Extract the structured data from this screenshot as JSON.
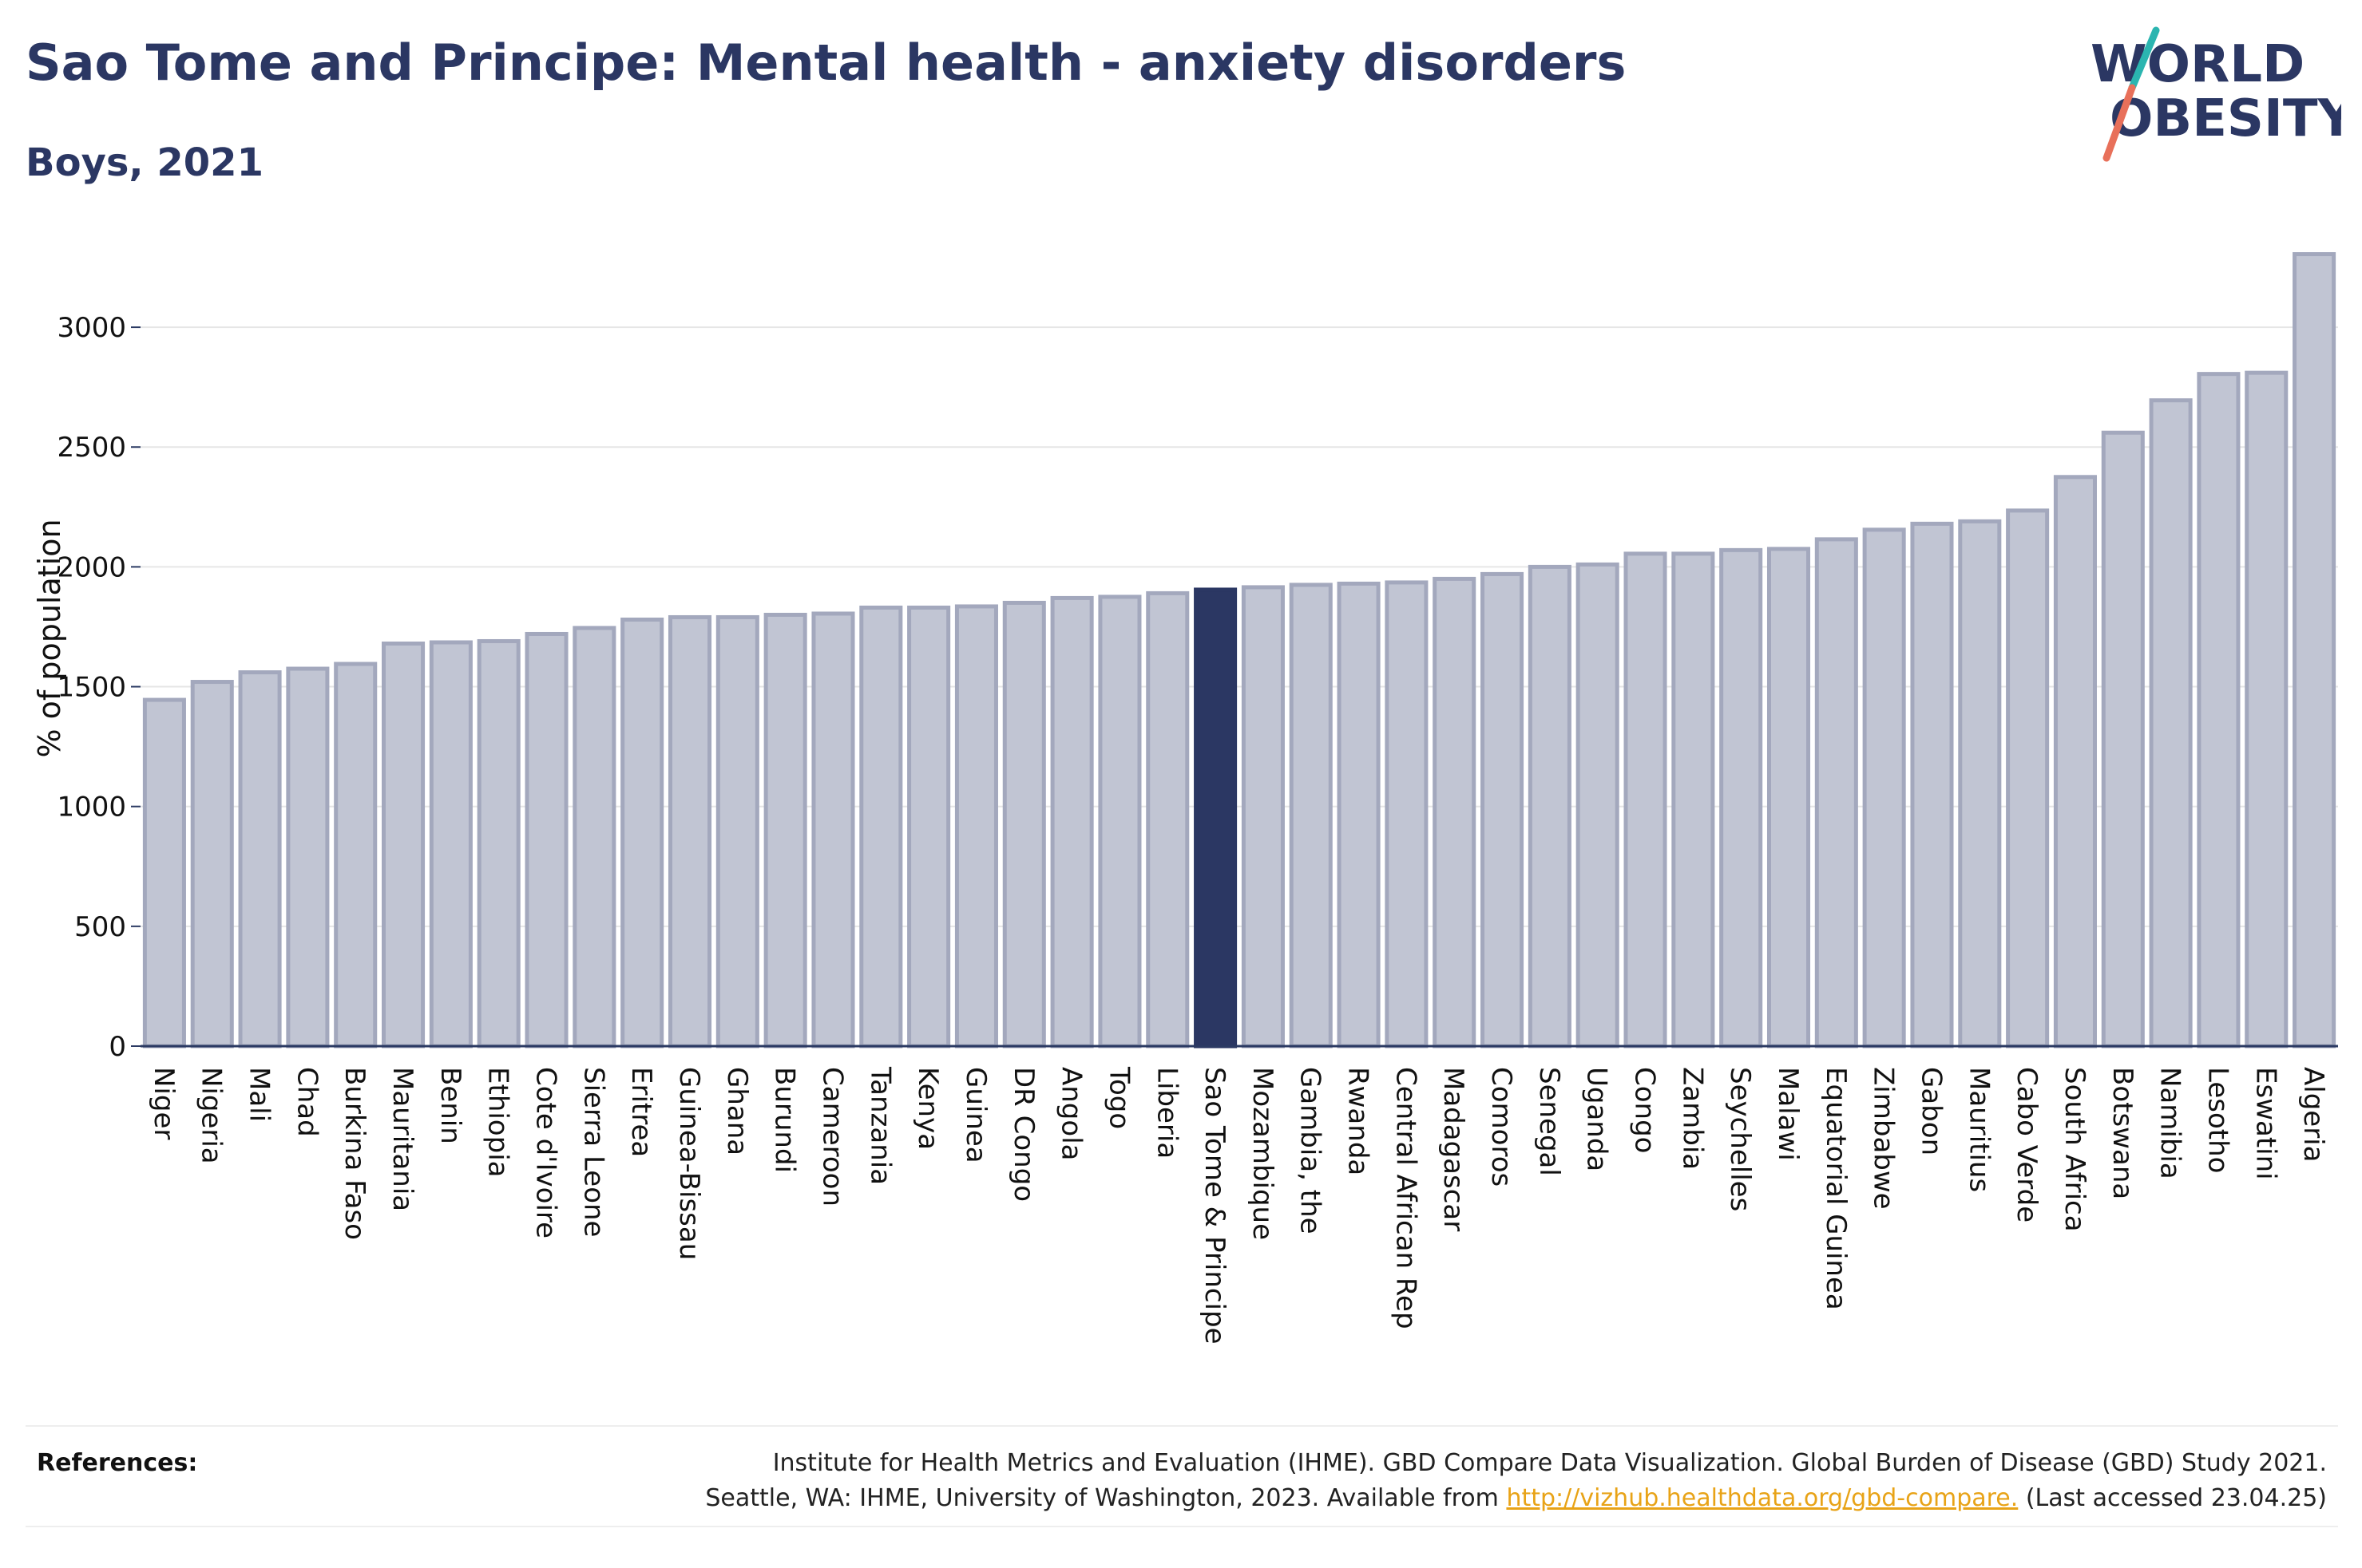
{
  "header": {
    "title": "Sao Tome and Principe: Mental health - anxiety disorders",
    "subtitle": "Boys, 2021"
  },
  "logo": {
    "line1": "WORLD",
    "line2": "OBESITY",
    "colors": {
      "text": "#2b3763",
      "slash_top": "#2bb5b0",
      "slash_bottom": "#e8705a"
    }
  },
  "references": {
    "label": "References:",
    "line1": "Institute for Health Metrics and Evaluation (IHME). GBD Compare Data Visualization. Global Burden of Disease (GBD) Study 2021.",
    "line2_prefix": "Seattle, WA: IHME, University of Washington, 2023. Available from",
    "link_text": "http://vizhub.healthdata.org/gbd-compare.",
    "line2_suffix": "(Last accessed 23.04.25)"
  },
  "colors": {
    "bar_fill": "#c1c5d3",
    "bar_stroke": "#a3a8bd",
    "highlight": "#2b3763",
    "gridline": "#e6e6e6",
    "axis": "#2b3a63"
  },
  "chart_data": {
    "type": "bar",
    "title": "Sao Tome and Principe: Mental health - anxiety disorders",
    "subtitle": "Boys, 2021",
    "ylabel": "% of population",
    "xlabel": "",
    "ylim": [
      0,
      3300
    ],
    "yticks": [
      0,
      500,
      1000,
      1500,
      2000,
      2500,
      3000
    ],
    "grid": true,
    "highlight_category": "Sao Tome & Principe",
    "categories": [
      "Niger",
      "Nigeria",
      "Mali",
      "Chad",
      "Burkina Faso",
      "Mauritania",
      "Benin",
      "Ethiopia",
      "Cote d'Ivoire",
      "Sierra Leone",
      "Eritrea",
      "Guinea-Bissau",
      "Ghana",
      "Burundi",
      "Cameroon",
      "Tanzania",
      "Kenya",
      "Guinea",
      "DR Congo",
      "Angola",
      "Togo",
      "Liberia",
      "Sao Tome & Principe",
      "Mozambique",
      "Gambia, the",
      "Rwanda",
      "Central African Rep",
      "Madagascar",
      "Comoros",
      "Senegal",
      "Uganda",
      "Congo",
      "Zambia",
      "Seychelles",
      "Malawi",
      "Equatorial Guinea",
      "Zimbabwe",
      "Gabon",
      "Mauritius",
      "Cabo Verde",
      "South Africa",
      "Botswana",
      "Namibia",
      "Lesotho",
      "Eswatini",
      "Algeria"
    ],
    "values": [
      1445,
      1520,
      1560,
      1575,
      1595,
      1680,
      1685,
      1690,
      1720,
      1745,
      1780,
      1790,
      1790,
      1800,
      1805,
      1830,
      1830,
      1835,
      1850,
      1870,
      1875,
      1890,
      1905,
      1915,
      1925,
      1930,
      1935,
      1950,
      1970,
      2000,
      2010,
      2055,
      2055,
      2070,
      2075,
      2115,
      2155,
      2180,
      2190,
      2235,
      2375,
      2560,
      2695,
      2805,
      2810,
      3305
    ]
  }
}
